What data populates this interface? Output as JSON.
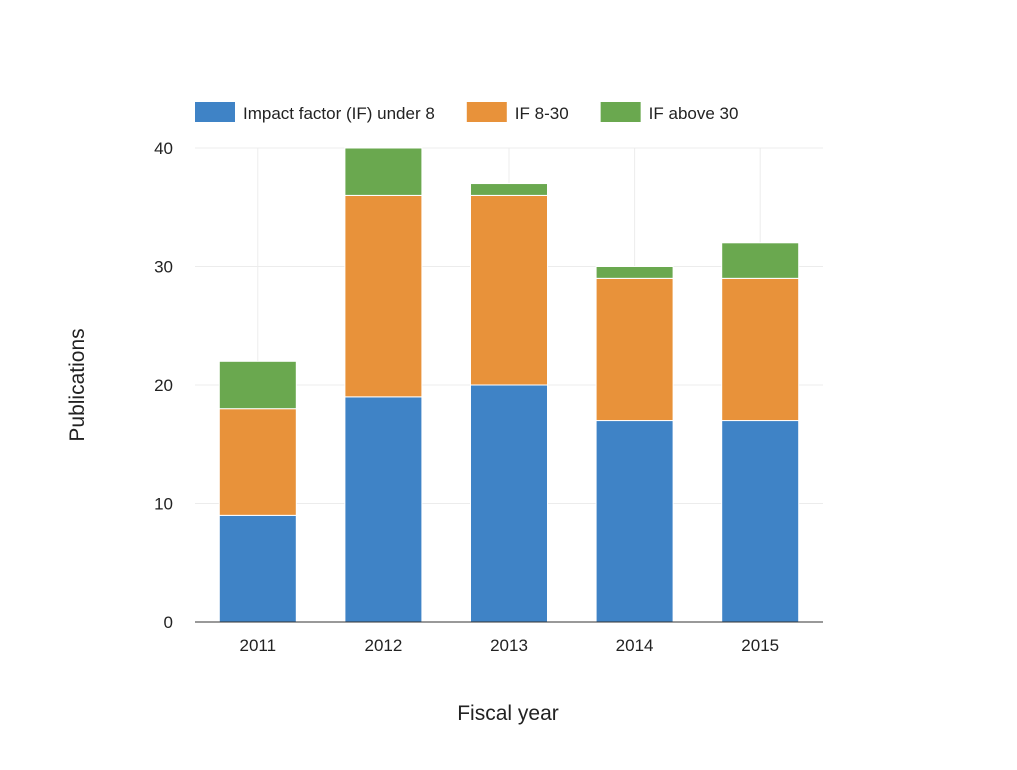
{
  "chart_data": {
    "type": "bar",
    "stacked": true,
    "title": "",
    "xlabel": "Fiscal year",
    "ylabel": "Publications",
    "categories": [
      "2011",
      "2012",
      "2013",
      "2014",
      "2015"
    ],
    "series": [
      {
        "name": "Impact factor (IF) under 8",
        "values": [
          9,
          19,
          20,
          17,
          17
        ],
        "color": "#3f83c6"
      },
      {
        "name": "IF 8-30",
        "values": [
          9,
          17,
          16,
          12,
          12
        ],
        "color": "#e8923a"
      },
      {
        "name": "IF above 30",
        "values": [
          4,
          4,
          1,
          1,
          3
        ],
        "color": "#6aa84f"
      }
    ],
    "ylim": [
      0,
      40
    ],
    "yticks": [
      0,
      10,
      20,
      30,
      40
    ],
    "grid": true,
    "legend_position": "top"
  }
}
